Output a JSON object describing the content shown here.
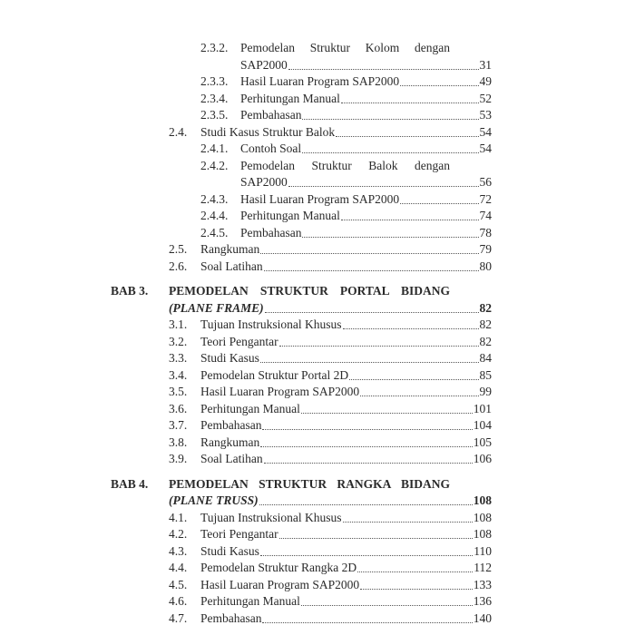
{
  "toc": [
    {
      "type": "sub",
      "num": "2.3.2.",
      "title": "Pemodelan Struktur Kolom dengan",
      "cont": "SAP2000",
      "page": "31"
    },
    {
      "type": "sub",
      "num": "2.3.3.",
      "title": "Hasil Luaran Program SAP2000",
      "page": "49"
    },
    {
      "type": "sub",
      "num": "2.3.4.",
      "title": "Perhitungan Manual",
      "page": "52"
    },
    {
      "type": "sub",
      "num": "2.3.5.",
      "title": "Pembahasan",
      "page": "53"
    },
    {
      "type": "sec",
      "num": "2.4.",
      "title": "Studi Kasus Struktur Balok",
      "page": "54"
    },
    {
      "type": "sub",
      "num": "2.4.1.",
      "title": "Contoh Soal",
      "page": "54"
    },
    {
      "type": "sub",
      "num": "2.4.2.",
      "title": "Pemodelan Struktur Balok dengan",
      "cont": "SAP2000",
      "page": "56"
    },
    {
      "type": "sub",
      "num": "2.4.3.",
      "title": "Hasil Luaran Program SAP2000",
      "page": "72"
    },
    {
      "type": "sub",
      "num": "2.4.4.",
      "title": "Perhitungan Manual",
      "page": "74"
    },
    {
      "type": "sub",
      "num": "2.4.5.",
      "title": "Pembahasan",
      "page": "78"
    },
    {
      "type": "sec",
      "num": "2.5.",
      "title": "Rangkuman",
      "page": "79"
    },
    {
      "type": "sec",
      "num": "2.6.",
      "title": "Soal Latihan",
      "page": "80"
    },
    {
      "type": "chap",
      "num": "BAB 3.",
      "title": "PEMODELAN STRUKTUR PORTAL BIDANG",
      "cont": "(PLANE FRAME)",
      "page": "82"
    },
    {
      "type": "sec",
      "num": "3.1.",
      "title": "Tujuan Instruksional Khusus",
      "page": "82"
    },
    {
      "type": "sec",
      "num": "3.2.",
      "title": "Teori Pengantar",
      "page": "82"
    },
    {
      "type": "sec",
      "num": "3.3.",
      "title": "Studi Kasus",
      "page": "84"
    },
    {
      "type": "sec",
      "num": "3.4.",
      "title": "Pemodelan Struktur Portal 2D",
      "page": "85"
    },
    {
      "type": "sec",
      "num": "3.5.",
      "title": "Hasil Luaran Program SAP2000",
      "page": "99"
    },
    {
      "type": "sec",
      "num": "3.6.",
      "title": "Perhitungan Manual",
      "page": "101"
    },
    {
      "type": "sec",
      "num": "3.7.",
      "title": "Pembahasan",
      "page": "104"
    },
    {
      "type": "sec",
      "num": "3.8.",
      "title": "Rangkuman",
      "page": "105"
    },
    {
      "type": "sec",
      "num": "3.9.",
      "title": "Soal Latihan",
      "page": "106"
    },
    {
      "type": "chap",
      "num": "BAB 4.",
      "title": "PEMODELAN STRUKTUR RANGKA BIDANG",
      "cont": "(PLANE TRUSS)",
      "page": "108"
    },
    {
      "type": "sec",
      "num": "4.1.",
      "title": "Tujuan Instruksional Khusus",
      "page": "108"
    },
    {
      "type": "sec",
      "num": "4.2.",
      "title": "Teori Pengantar",
      "page": "108"
    },
    {
      "type": "sec",
      "num": "4.3.",
      "title": "Studi Kasus",
      "page": "110"
    },
    {
      "type": "sec",
      "num": "4.4.",
      "title": "Pemodelan Struktur Rangka 2D",
      "page": "112"
    },
    {
      "type": "sec",
      "num": "4.5.",
      "title": "Hasil Luaran Program SAP2000",
      "page": "133"
    },
    {
      "type": "sec",
      "num": "4.6.",
      "title": "Perhitungan Manual",
      "page": "136"
    },
    {
      "type": "sec",
      "num": "4.7.",
      "title": "Pembahasan",
      "page": "140"
    }
  ]
}
